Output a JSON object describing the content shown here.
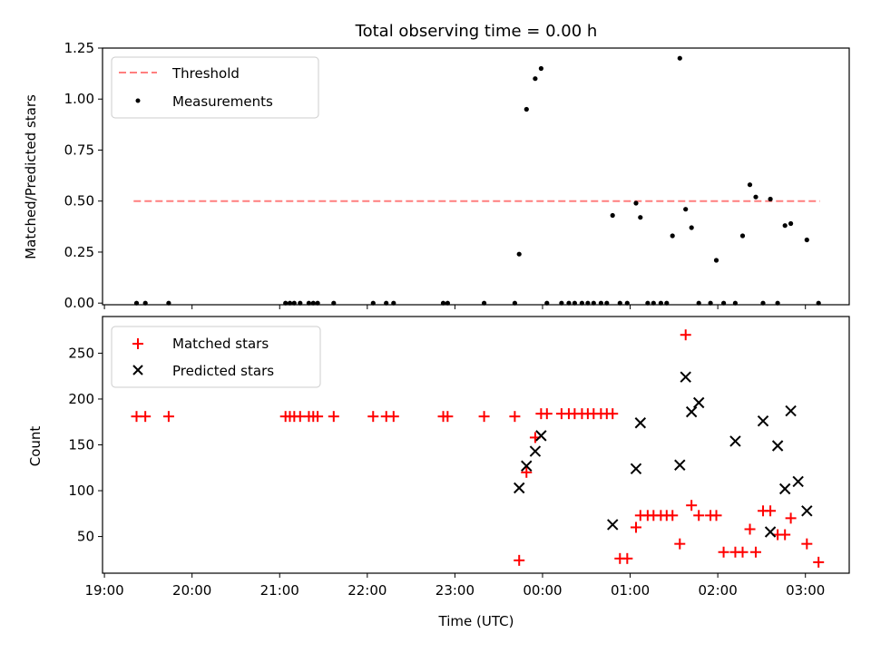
{
  "chart_data": [
    {
      "type": "scatter",
      "title": "Total observing time = 0.00 h",
      "xlabel": "",
      "ylabel": "Matched/Predicted stars",
      "ylim": [
        0,
        1.25
      ],
      "yticks": [
        "0.00",
        "0.25",
        "0.50",
        "0.75",
        "1.00",
        "1.25"
      ],
      "legend": {
        "position": "top-left",
        "entries": [
          "Threshold",
          "Measurements"
        ]
      },
      "grid": false,
      "threshold": {
        "name": "Threshold",
        "value": 0.5,
        "x_start": "19:20",
        "x_end": "03:10",
        "color": "#ff7f7f"
      },
      "series": [
        {
          "name": "Measurements",
          "color": "#000000",
          "x": [
            "19:22",
            "19:28",
            "19:44",
            "21:04",
            "21:07",
            "21:10",
            "21:14",
            "21:20",
            "21:23",
            "21:26",
            "21:37",
            "22:04",
            "22:13",
            "22:18",
            "22:52",
            "22:55",
            "23:20",
            "23:41",
            "23:44",
            "23:49",
            "23:55",
            "23:59",
            "00:03",
            "00:13",
            "00:18",
            "00:22",
            "00:27",
            "00:31",
            "00:35",
            "00:40",
            "00:44",
            "00:48",
            "00:53",
            "00:58",
            "01:04",
            "01:07",
            "01:12",
            "01:16",
            "01:21",
            "01:25",
            "01:29",
            "01:34",
            "01:38",
            "01:42",
            "01:47",
            "01:55",
            "01:59",
            "02:04",
            "02:12",
            "02:17",
            "02:22",
            "02:26",
            "02:31",
            "02:36",
            "02:41",
            "02:46",
            "02:50",
            "03:01",
            "03:09"
          ],
          "y": [
            0.0,
            0.0,
            0.0,
            0.0,
            0.0,
            0.0,
            0.0,
            0.0,
            0.0,
            0.0,
            0.0,
            0.0,
            0.0,
            0.0,
            0.0,
            0.0,
            0.0,
            0.0,
            0.24,
            0.95,
            1.1,
            1.15,
            0.0,
            0.0,
            0.0,
            0.0,
            0.0,
            0.0,
            0.0,
            0.0,
            0.0,
            0.43,
            0.0,
            0.0,
            0.49,
            0.42,
            0.0,
            0.0,
            0.0,
            0.0,
            0.33,
            1.2,
            0.46,
            0.37,
            0.0,
            0.0,
            0.21,
            0.0,
            0.0,
            0.33,
            0.58,
            0.52,
            0.0,
            0.51,
            0.0,
            0.38,
            0.39,
            0.31,
            0.0
          ]
        }
      ]
    },
    {
      "type": "scatter",
      "title": "",
      "xlabel": "Time (UTC)",
      "ylabel": "Count",
      "ylim": [
        10,
        290
      ],
      "xlim": [
        "19:00",
        "03:30"
      ],
      "xticks": [
        "19:00",
        "20:00",
        "21:00",
        "22:00",
        "23:00",
        "00:00",
        "01:00",
        "02:00",
        "03:00"
      ],
      "yticks": [
        "50",
        "100",
        "150",
        "200",
        "250"
      ],
      "legend": {
        "position": "top-left",
        "entries": [
          "Matched stars",
          "Predicted stars"
        ]
      },
      "grid": false,
      "series": [
        {
          "name": "Matched stars",
          "marker": "+",
          "color": "#ff0000",
          "x": [
            "19:22",
            "19:28",
            "19:44",
            "21:04",
            "21:07",
            "21:10",
            "21:14",
            "21:20",
            "21:23",
            "21:26",
            "21:37",
            "22:04",
            "22:13",
            "22:18",
            "22:52",
            "22:55",
            "23:20",
            "23:41",
            "23:44",
            "23:49",
            "23:55",
            "23:59",
            "00:03",
            "00:13",
            "00:18",
            "00:22",
            "00:27",
            "00:31",
            "00:35",
            "00:40",
            "00:44",
            "00:48",
            "00:53",
            "00:58",
            "01:04",
            "01:07",
            "01:12",
            "01:16",
            "01:21",
            "01:25",
            "01:29",
            "01:34",
            "01:38",
            "01:42",
            "01:47",
            "01:55",
            "01:59",
            "02:04",
            "02:12",
            "02:17",
            "02:22",
            "02:26",
            "02:31",
            "02:36",
            "02:41",
            "02:46",
            "02:50",
            "03:01",
            "03:09"
          ],
          "y": [
            181,
            181,
            181,
            181,
            181,
            181,
            181,
            181,
            181,
            181,
            181,
            181,
            181,
            181,
            181,
            181,
            181,
            181,
            24,
            120,
            158,
            184,
            184,
            184,
            184,
            184,
            184,
            184,
            184,
            184,
            184,
            184,
            26,
            26,
            60,
            73,
            73,
            73,
            73,
            73,
            73,
            42,
            270,
            84,
            73,
            73,
            73,
            33,
            33,
            33,
            58,
            33,
            78,
            78,
            52,
            52,
            70,
            42,
            22
          ]
        },
        {
          "name": "Predicted stars",
          "marker": "x",
          "color": "#000000",
          "x": [
            "23:44",
            "23:49",
            "23:55",
            "23:59",
            "00:48",
            "01:04",
            "01:07",
            "01:34",
            "01:38",
            "01:42",
            "01:47",
            "02:12",
            "02:31",
            "02:36",
            "02:41",
            "02:46",
            "02:50",
            "02:55",
            "03:01"
          ],
          "y": [
            103,
            127,
            143,
            160,
            63,
            124,
            174,
            128,
            224,
            186,
            196,
            154,
            176,
            55,
            149,
            102,
            187,
            110,
            78
          ]
        }
      ]
    }
  ]
}
